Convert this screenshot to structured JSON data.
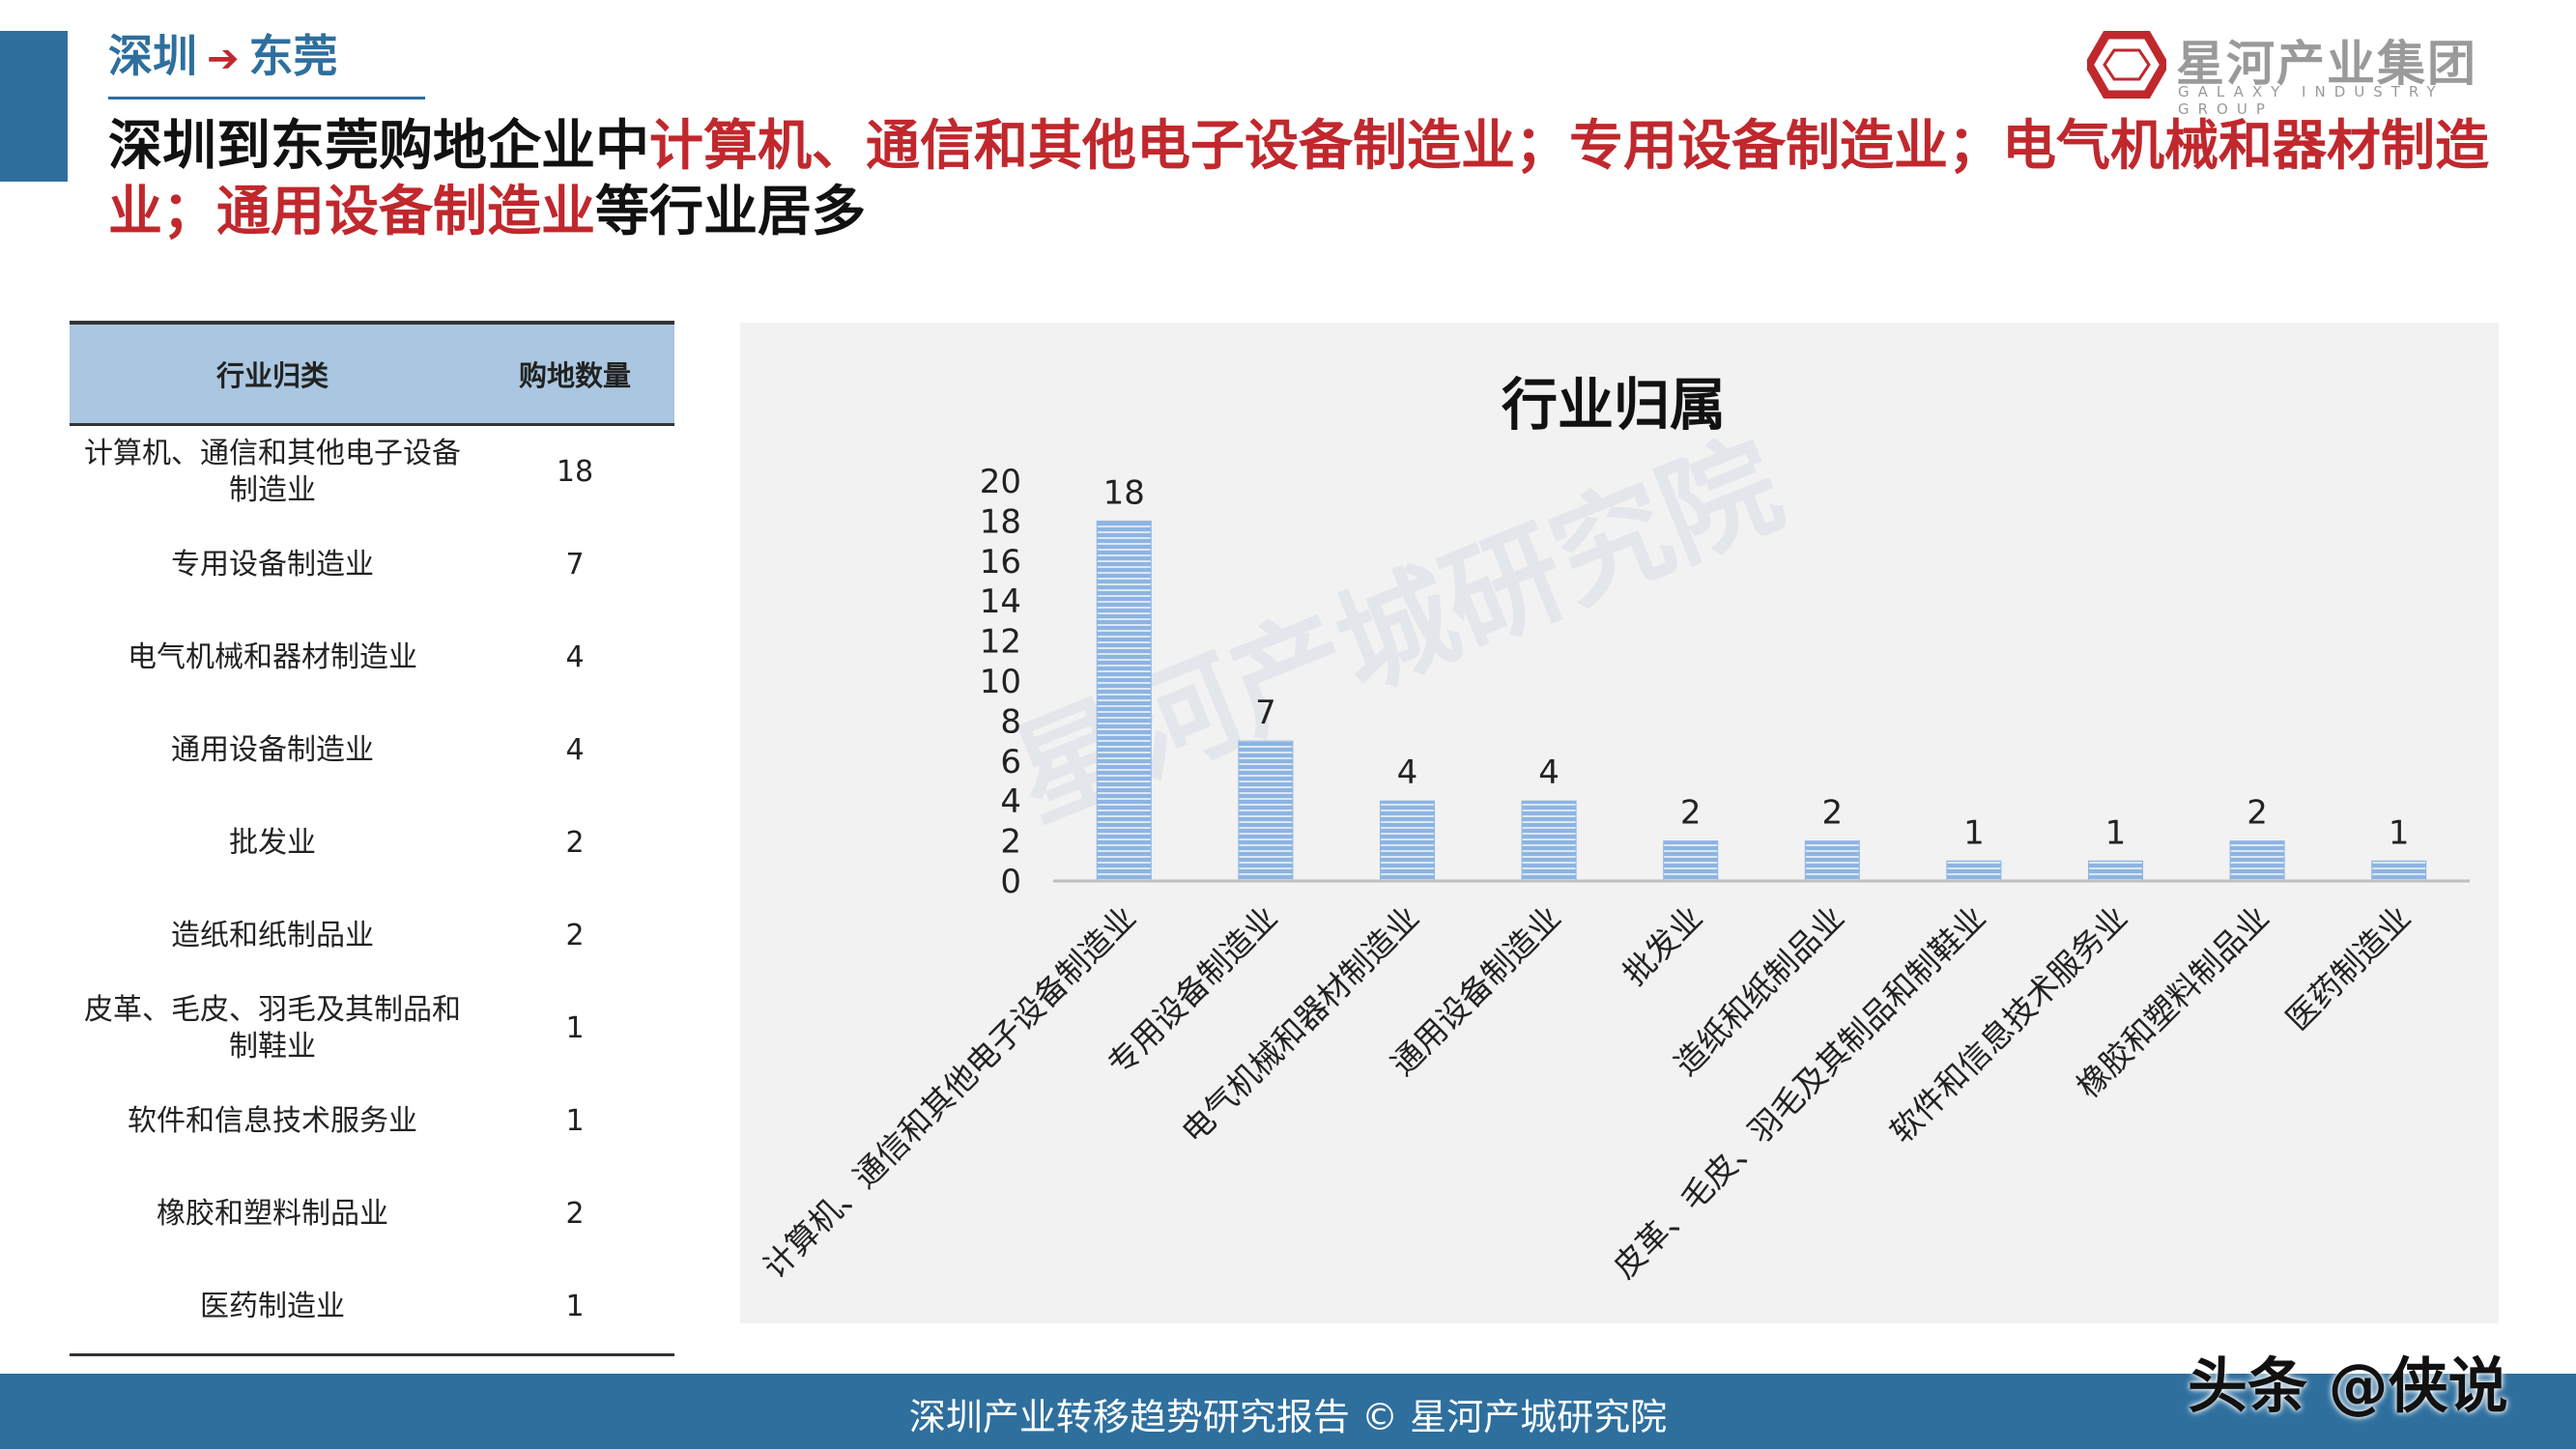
{
  "header": {
    "crumb_from": "深圳",
    "crumb_to": "东莞",
    "logo_name": "星河产业集团",
    "logo_en": "GALAXY INDUSTRY GROUP",
    "headline_parts": [
      {
        "text": "深圳到东莞购地企业中",
        "red": false
      },
      {
        "text": "计算机、通信和其他电子设备制造业；专用设备制造业；电气机械和器材制造业；通用设备制造业",
        "red": true
      },
      {
        "text": "等行业居多",
        "red": false
      }
    ]
  },
  "table": {
    "headers": [
      "行业归类",
      "购地数量"
    ],
    "rows": [
      {
        "name": "计算机、通信和其他电子设备制造业",
        "count": "18"
      },
      {
        "name": "专用设备制造业",
        "count": "7"
      },
      {
        "name": "电气机械和器材制造业",
        "count": "4"
      },
      {
        "name": "通用设备制造业",
        "count": "4"
      },
      {
        "name": "批发业",
        "count": "2"
      },
      {
        "name": "造纸和纸制品业",
        "count": "2"
      },
      {
        "name": "皮革、毛皮、羽毛及其制品和制鞋业",
        "count": "1"
      },
      {
        "name": "软件和信息技术服务业",
        "count": "1"
      },
      {
        "name": "橡胶和塑料制品业",
        "count": "2"
      },
      {
        "name": "医药制造业",
        "count": "1"
      }
    ]
  },
  "chart_data": {
    "type": "bar",
    "title": "行业归属",
    "categories": [
      "计算机、通信和其他电子设备制造业",
      "专用设备制造业",
      "电气机械和器材制造业",
      "通用设备制造业",
      "批发业",
      "造纸和纸制品业",
      "皮革、毛皮、羽毛及其制品和制鞋业",
      "软件和信息技术服务业",
      "橡胶和塑料制品业",
      "医药制造业"
    ],
    "values": [
      18,
      7,
      4,
      4,
      2,
      2,
      1,
      1,
      2,
      1
    ],
    "ylim": [
      0,
      20
    ],
    "yticks": [
      0,
      2,
      4,
      6,
      8,
      10,
      12,
      14,
      16,
      18,
      20
    ],
    "data_labels": true,
    "grid": false,
    "bar_color": "#8db4e2",
    "watermark": "星河产城研究院"
  },
  "footer": {
    "text": "深圳产业转移趋势研究报告 © 星河产城研究院",
    "source": "头条 @侠说"
  },
  "colors": {
    "accent": "#2e6f9e",
    "highlight": "#c0282d",
    "table_header": "#aac6e0"
  }
}
